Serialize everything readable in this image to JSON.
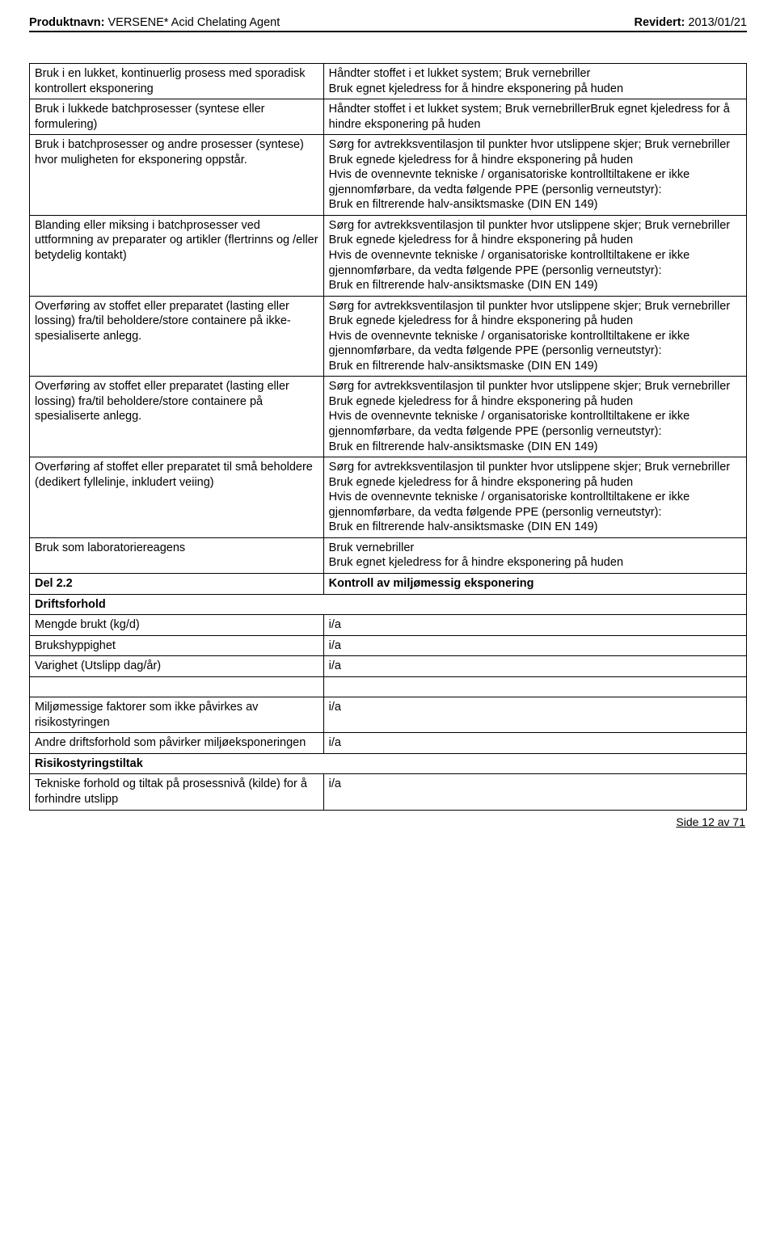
{
  "header": {
    "product_label": "Produktnavn:",
    "product_name": "VERSENE* Acid Chelating Agent",
    "revised_label": "Revidert:",
    "revised_date": "2013/01/21"
  },
  "rows": [
    {
      "left": "Bruk i en lukket, kontinuerlig prosess med sporadisk kontrollert eksponering",
      "right": "Håndter stoffet i et lukket system; Bruk vernebriller\nBruk egnet kjeledress for å hindre eksponering på huden"
    },
    {
      "left": "Bruk i lukkede batchprosesser (syntese eller formulering)",
      "right": "Håndter stoffet i et lukket system; Bruk vernebrillerBruk egnet kjeledress for å hindre eksponering på huden"
    },
    {
      "left": "Bruk i batchprosesser og andre prosesser (syntese) hvor muligheten for eksponering oppstår.",
      "right": "Sørg for avtrekksventilasjon til punkter hvor utslippene skjer; Bruk vernebriller\n Bruk egnede kjeledress for å hindre eksponering på huden\nHvis de ovennevnte tekniske / organisatoriske kontrolltiltakene er ikke gjennomførbare, da vedta følgende PPE (personlig verneutstyr):\nBruk en filtrerende halv-ansiktsmaske  (DIN EN 149)"
    },
    {
      "left": "Blanding eller miksing i batchprosesser ved uttformning av preparater og artikler (flertrinns og /eller betydelig kontakt)",
      "right": "Sørg for avtrekksventilasjon til punkter hvor utslippene skjer; Bruk vernebriller\n Bruk egnede kjeledress for å hindre eksponering på huden\nHvis de ovennevnte tekniske / organisatoriske kontrolltiltakene er ikke gjennomførbare, da vedta følgende PPE (personlig verneutstyr):\nBruk en filtrerende halv-ansiktsmaske  (DIN EN 149)"
    },
    {
      "left": "Overføring av stoffet eller preparatet (lasting eller lossing) fra/til beholdere/store containere på ikke-spesialiserte anlegg.",
      "right": "Sørg for avtrekksventilasjon til punkter hvor utslippene skjer; Bruk vernebriller\n Bruk egnede kjeledress for å hindre eksponering på huden\nHvis de ovennevnte tekniske / organisatoriske kontrolltiltakene er ikke gjennomførbare, da vedta følgende PPE (personlig verneutstyr):\nBruk en filtrerende halv-ansiktsmaske  (DIN EN 149)"
    },
    {
      "left": "Overføring av stoffet eller preparatet (lasting eller lossing) fra/til beholdere/store containere på spesialiserte anlegg.",
      "right": "Sørg for avtrekksventilasjon til punkter hvor utslippene skjer; Bruk vernebriller\nBruk egnede kjeledress for å hindre eksponering på huden\nHvis de ovennevnte tekniske / organisatoriske kontrolltiltakene er ikke gjennomførbare, da vedta følgende PPE (personlig verneutstyr):\nBruk en filtrerende halv-ansiktsmaske  (DIN EN 149)"
    },
    {
      "left": "Overføring af stoffet eller preparatet til små beholdere (dedikert fyllelinje, inkludert veiing)",
      "right": "Sørg for avtrekksventilasjon til punkter hvor utslippene skjer; Bruk vernebriller\n Bruk egnede kjeledress for å hindre eksponering på huden\nHvis de ovennevnte tekniske / organisatoriske kontrolltiltakene er ikke gjennomførbare, da vedta følgende PPE (personlig verneutstyr):\nBruk en filtrerende halv-ansiktsmaske  (DIN EN 149)"
    },
    {
      "left": "Bruk som laboratoriereagens",
      "right": "Bruk vernebriller\nBruk egnet kjeledress for å hindre eksponering på huden"
    },
    {
      "left_bold": true,
      "right_bold": true,
      "left": "Del 2.2",
      "right": "Kontroll av miljømessig eksponering"
    },
    {
      "left_bold": true,
      "left": "Driftsforhold",
      "right": null
    },
    {
      "left": "Mengde brukt (kg/d)",
      "right": "i/a"
    },
    {
      "left": "Brukshyppighet",
      "right": "i/a"
    },
    {
      "left": "Varighet (Utslipp dag/år)",
      "right": "i/a"
    },
    {
      "spacer": true
    },
    {
      "left": "Miljømessige faktorer som ikke påvirkes av risikostyringen",
      "right": "i/a"
    },
    {
      "left": "Andre driftsforhold som påvirker miljøeksponeringen",
      "right": "i/a"
    },
    {
      "left_bold": true,
      "left": "Risikostyringstiltak",
      "right": null
    },
    {
      "left": "Tekniske forhold og tiltak på prosessnivå (kilde) for å forhindre utslipp",
      "right": "i/a"
    }
  ],
  "footer": {
    "text": "Side 12 av 71"
  }
}
